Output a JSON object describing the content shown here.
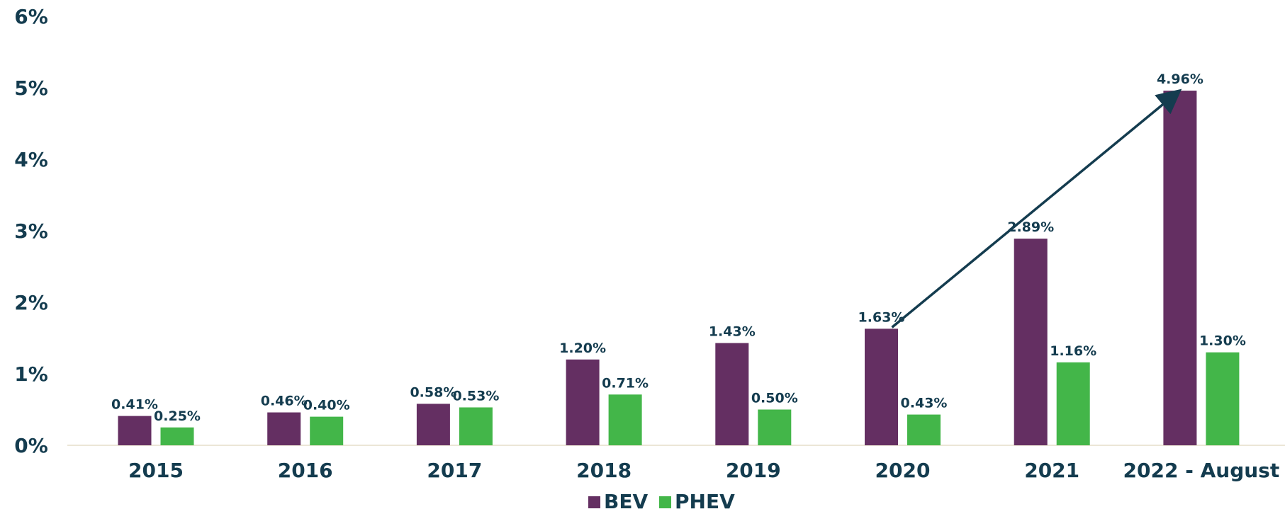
{
  "colors": {
    "bev": "#642f62",
    "phev": "#43b649",
    "text": "#143c4f",
    "axis": "#ece6d6",
    "arrow": "#143c4f"
  },
  "chart_data": {
    "type": "bar",
    "title": "",
    "xlabel": "",
    "ylabel": "",
    "categories": [
      "2015",
      "2016",
      "2017",
      "2018",
      "2019",
      "2020",
      "2021",
      "2022 - August"
    ],
    "series": [
      {
        "name": "BEV",
        "values": [
          0.41,
          0.46,
          0.58,
          1.2,
          1.43,
          1.63,
          2.89,
          4.96
        ],
        "labels": [
          "0.41%",
          "0.46%",
          "0.58%",
          "1.20%",
          "1.43%",
          "1.63%",
          "2.89%",
          "4.96%"
        ]
      },
      {
        "name": "PHEV",
        "values": [
          0.25,
          0.4,
          0.53,
          0.71,
          0.5,
          0.43,
          1.16,
          1.3
        ],
        "labels": [
          "0.25%",
          "0.40%",
          "0.53%",
          "0.71%",
          "0.50%",
          "0.43%",
          "1.16%",
          "1.30%"
        ]
      }
    ],
    "yticks": [
      0,
      1,
      2,
      3,
      4,
      5,
      6
    ],
    "ytick_labels": [
      "0%",
      "1%",
      "2%",
      "3%",
      "4%",
      "5%",
      "6%"
    ],
    "ylim": [
      0,
      6
    ],
    "grid": false,
    "legend": {
      "position": "bottom",
      "entries": [
        "BEV",
        "PHEV"
      ]
    },
    "annotations": [
      {
        "type": "arrow",
        "from": {
          "category": "2020",
          "series": "BEV",
          "value": 1.63
        },
        "to": {
          "category": "2022 - August",
          "series": "BEV",
          "value": 4.96
        }
      }
    ]
  }
}
